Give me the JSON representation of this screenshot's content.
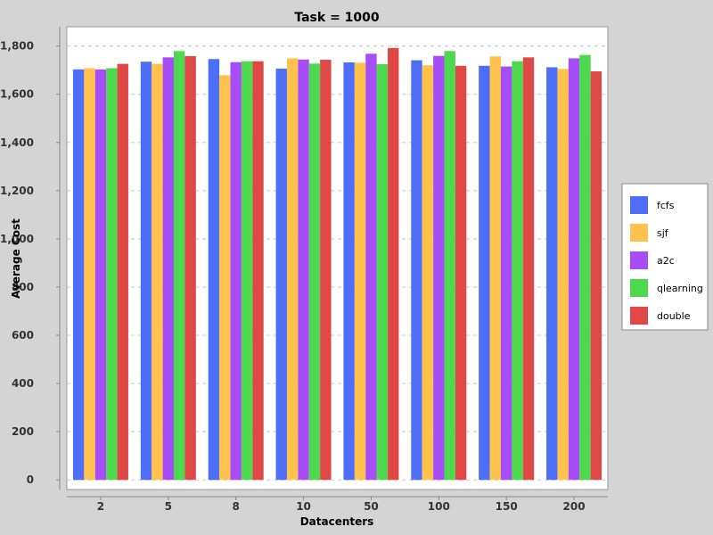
{
  "chart_data": {
    "type": "bar",
    "title": "Task = 1000",
    "xlabel": "Datacenters",
    "ylabel": "Average Cost",
    "categories": [
      "2",
      "5",
      "8",
      "10",
      "50",
      "100",
      "150",
      "200"
    ],
    "series": [
      {
        "name": "fcfs",
        "color": "#4f6ef7",
        "values": [
          1703,
          1735,
          1746,
          1706,
          1732,
          1741,
          1718,
          1712
        ]
      },
      {
        "name": "sjf",
        "color": "#ffc34d",
        "values": [
          1708,
          1726,
          1679,
          1749,
          1731,
          1720,
          1757,
          1705
        ]
      },
      {
        "name": "a2c",
        "color": "#a64df7",
        "values": [
          1703,
          1753,
          1733,
          1744,
          1768,
          1759,
          1715,
          1749
        ]
      },
      {
        "name": "qlearning",
        "color": "#4dd94d",
        "values": [
          1708,
          1779,
          1737,
          1727,
          1725,
          1779,
          1737,
          1763
        ]
      },
      {
        "name": "double",
        "color": "#e04848",
        "values": [
          1726,
          1758,
          1737,
          1743,
          1792,
          1718,
          1753,
          1695
        ]
      }
    ],
    "ylim": [
      -40,
      1880
    ],
    "yticks": [
      0,
      200,
      400,
      600,
      800,
      1000,
      1200,
      1400,
      1600,
      1800
    ],
    "ytick_labels": [
      "0",
      "200",
      "400",
      "600",
      "800",
      "1,000",
      "1,200",
      "1,400",
      "1,600",
      "1,800"
    ],
    "grid": true,
    "legend_position": "right"
  }
}
